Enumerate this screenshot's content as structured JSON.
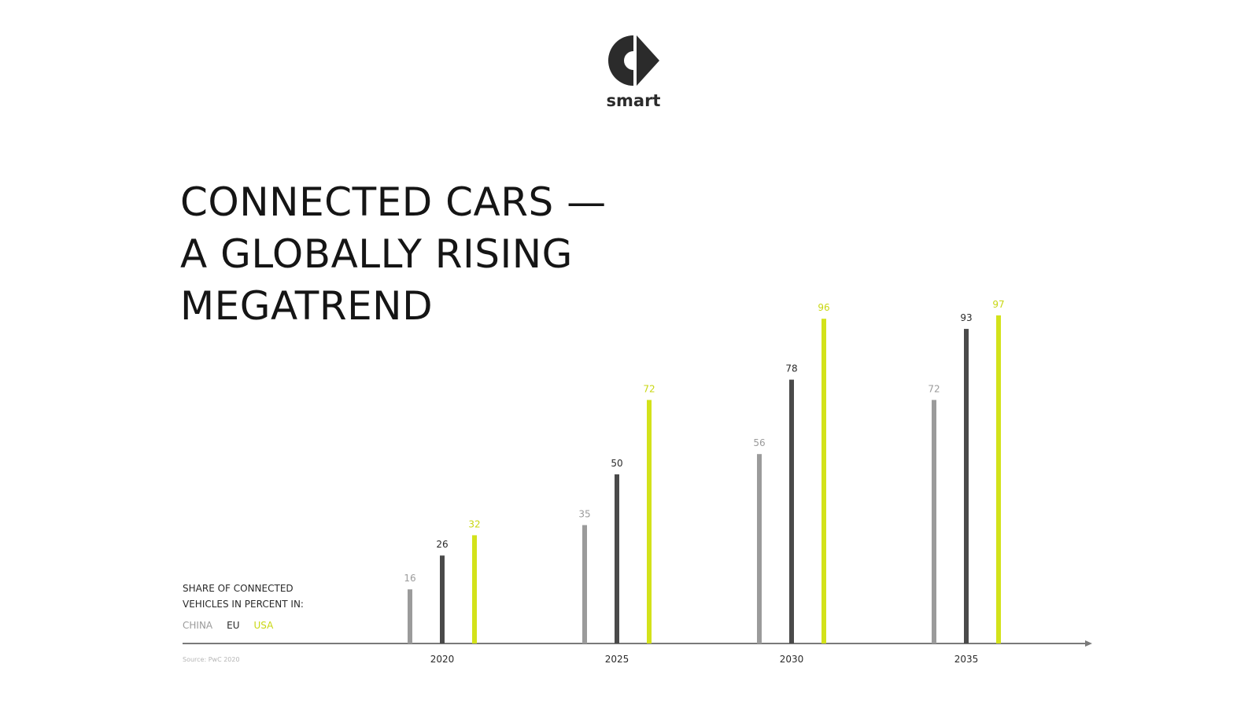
{
  "brand": {
    "name": "smart",
    "logo_color": "#2b2b2b"
  },
  "title_lines": [
    "CONNECTED CARS —",
    "A GLOBALLY RISING",
    "MEGATREND"
  ],
  "legend": {
    "heading_line1": "SHARE OF CONNECTED",
    "heading_line2": "VEHICLES IN PERCENT IN:",
    "items": [
      "CHINA",
      "EU",
      "USA"
    ]
  },
  "source": "Source: PwC 2020",
  "colors": {
    "china": "#9b9b9b",
    "eu": "#4a4a4a",
    "usa": "#d3e21a",
    "axis": "#7a7a7a"
  },
  "chart_data": {
    "type": "bar",
    "categories": [
      "2020",
      "2025",
      "2030",
      "2035"
    ],
    "series": [
      {
        "name": "CHINA",
        "values": [
          16,
          35,
          56,
          72
        ]
      },
      {
        "name": "EU",
        "values": [
          26,
          50,
          78,
          93
        ]
      },
      {
        "name": "USA",
        "values": [
          32,
          72,
          96,
          97
        ]
      }
    ],
    "title": "CONNECTED CARS — A GLOBALLY RISING MEGATREND",
    "xlabel": "",
    "ylabel": "SHARE OF CONNECTED VEHICLES IN PERCENT IN:",
    "ylim": [
      0,
      100
    ],
    "grid": false,
    "legend_position": "bottom-left",
    "data_labels": true
  }
}
